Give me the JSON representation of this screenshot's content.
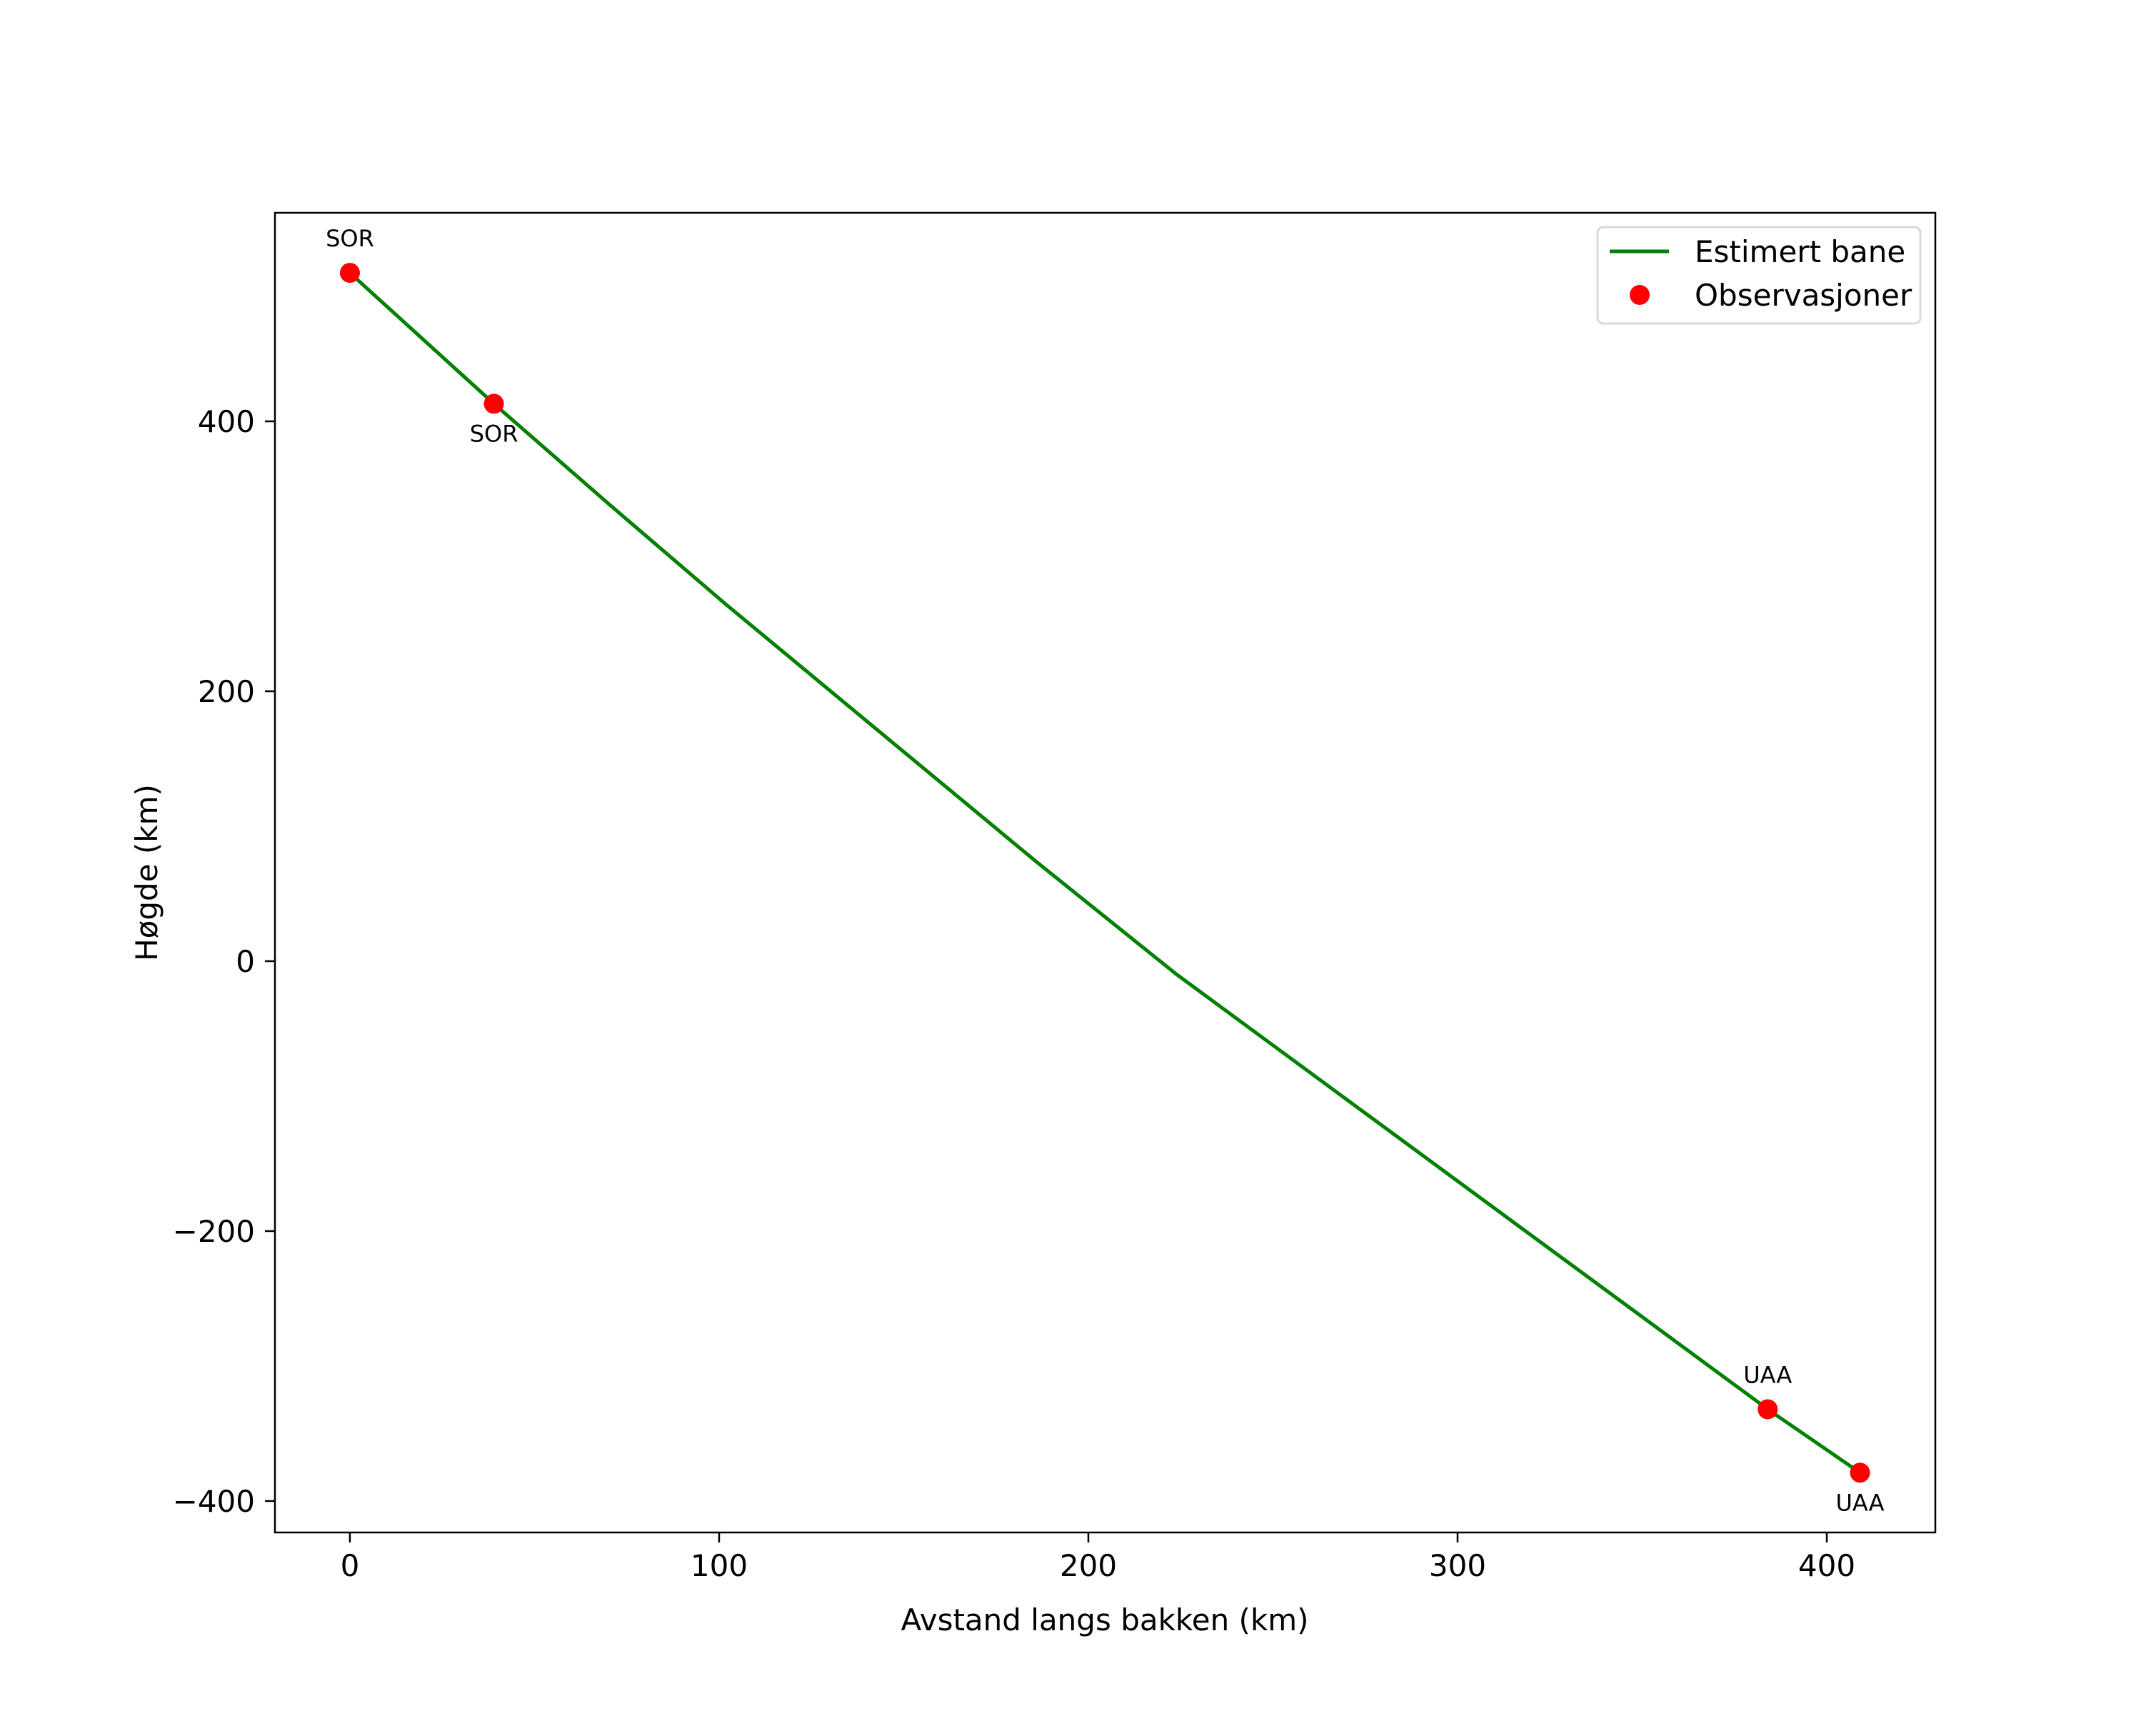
{
  "chart_data": {
    "type": "line",
    "title": "",
    "xlabel": "Avstand langs bakken (km)",
    "ylabel": "Høgde (km)",
    "xlim": [
      -20.3,
      429.4
    ],
    "ylim": [
      -423.3,
      554.5
    ],
    "grid": false,
    "legend_position": "upper right",
    "x_ticks": [
      0,
      100,
      200,
      300,
      400
    ],
    "x_tick_labels": [
      "0",
      "100",
      "200",
      "300",
      "400"
    ],
    "y_ticks": [
      -400,
      -200,
      0,
      200,
      400
    ],
    "y_tick_labels": [
      "−400",
      "−200",
      "0",
      "200",
      "400"
    ],
    "series": [
      {
        "name": "Estimert bane",
        "kind": "line",
        "color": "#008000",
        "x": [
          0,
          39,
          70,
          102,
          186,
          224,
          384,
          409
        ],
        "y": [
          510,
          413,
          339,
          264,
          73.5,
          -10,
          -332,
          -379
        ]
      },
      {
        "name": "Observasjoner",
        "kind": "scatter",
        "color": "#ff0000",
        "x": [
          0,
          39,
          384,
          409
        ],
        "y": [
          510,
          413,
          -332,
          -379
        ],
        "labels": [
          "SOR",
          "SOR",
          "UAA",
          "UAA"
        ],
        "label_positions": [
          "above",
          "below",
          "above",
          "below"
        ]
      }
    ]
  },
  "legend": {
    "items": [
      {
        "label": "Estimert bane",
        "marker": "line",
        "color": "#008000"
      },
      {
        "label": "Observasjoner",
        "marker": "dot",
        "color": "#ff0000"
      }
    ]
  }
}
